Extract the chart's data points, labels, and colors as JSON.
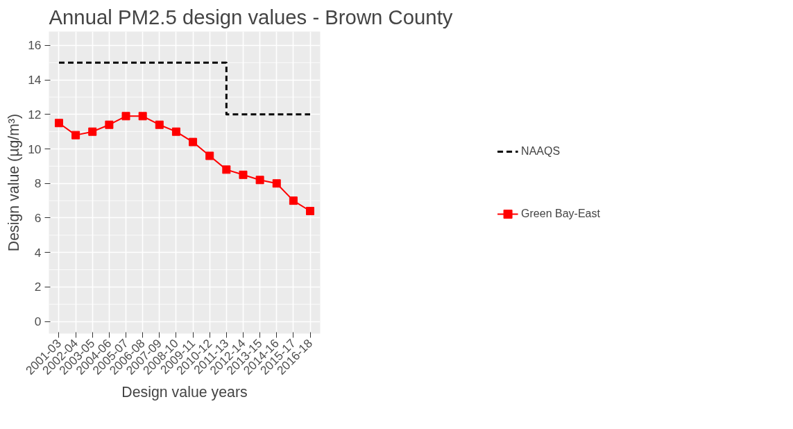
{
  "chart_data": {
    "type": "line",
    "title": "Annual PM2.5 design values - Brown County",
    "xlabel": "Design value years",
    "ylabel": "Design value (µg/m³)",
    "categories": [
      "2001-03",
      "2002-04",
      "2003-05",
      "2004-06",
      "2005-07",
      "2006-08",
      "2007-09",
      "2008-10",
      "2009-11",
      "2010-12",
      "2011-13",
      "2012-14",
      "2013-15",
      "2014-16",
      "2015-17",
      "2016-18"
    ],
    "series": [
      {
        "name": "NAAQS",
        "type": "step",
        "color": "#000000",
        "line_style": "dashed",
        "marker": "none",
        "values": [
          15,
          15,
          15,
          15,
          15,
          15,
          15,
          15,
          15,
          15,
          12,
          12,
          12,
          12,
          12,
          12
        ]
      },
      {
        "name": "Green Bay-East",
        "color": "#ff0000",
        "line_style": "solid",
        "marker": "square",
        "values": [
          11.5,
          10.8,
          11.0,
          11.4,
          11.9,
          11.9,
          11.4,
          11.0,
          10.4,
          9.6,
          8.8,
          8.5,
          8.2,
          8.0,
          7.0,
          6.4
        ]
      }
    ],
    "ylim": [
      -0.7,
      16.8
    ],
    "yticks": [
      0,
      2,
      4,
      6,
      8,
      10,
      12,
      14,
      16
    ],
    "grid": true,
    "legend": "right"
  }
}
